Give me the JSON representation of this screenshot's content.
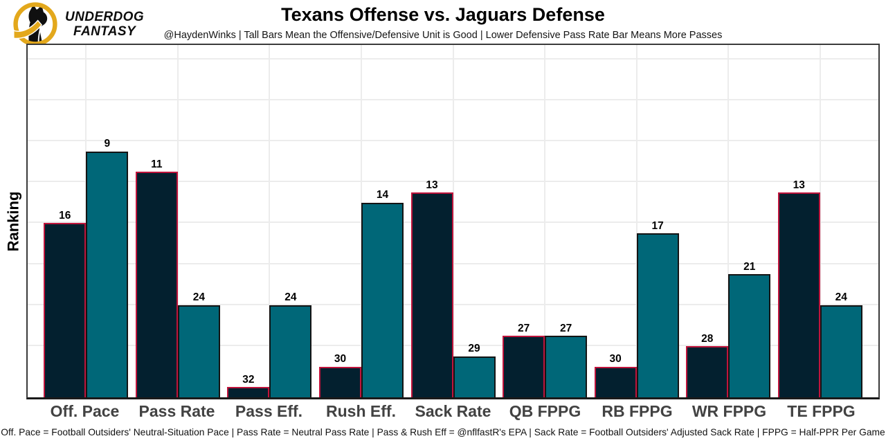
{
  "logo": {
    "line1": "UNDERDOG",
    "line2": "FANTASY"
  },
  "header": {
    "title": "Texans Offense vs. Jaguars Defense",
    "subtitle": "@HaydenWinks | Tall Bars Mean the Offensive/Defensive Unit is Good | Lower Defensive Pass Rate Bar Means More Passes"
  },
  "chart_data": {
    "type": "bar",
    "title": "Texans Offense vs. Jaguars Defense",
    "ylabel": "Ranking",
    "xlabel": "",
    "categories": [
      "Off. Pace",
      "Pass Rate",
      "Pass Eff.",
      "Rush Eff.",
      "Sack Rate",
      "QB FPPG",
      "RB FPPG",
      "WR FPPG",
      "TE FPPG"
    ],
    "series": [
      {
        "name": "Texans Offense",
        "color": "#03202f",
        "border_color": "#c0143c",
        "values": [
          16,
          11,
          32,
          30,
          13,
          27,
          30,
          28,
          13
        ]
      },
      {
        "name": "Jaguars Defense",
        "color": "#006778",
        "border_color": "#141414",
        "values": [
          9,
          24,
          24,
          14,
          29,
          27,
          17,
          21,
          24
        ]
      }
    ],
    "value_encoding": "Values are NFL rankings 1-32; bar height = 33 - ranking, so lower (better) ranking draws a taller bar",
    "axis_max_units": 34.4,
    "gridline_ranks": [
      28,
      24,
      20,
      16,
      12,
      8,
      4,
      0
    ],
    "grid": "on",
    "legend": "none",
    "accent_colors": {
      "offense_fill": "#03202f",
      "offense_outline": "#c0143c",
      "defense_fill": "#006778",
      "defense_outline": "#141414",
      "logo_gold": "#e3a81c"
    }
  },
  "footer": {
    "credits": "Off. Pace = Football Outsiders' Neutral-Situation Pace | Pass Rate = Neutral Pass Rate | Pass & Rush Eff = @nflfastR's EPA | Sack Rate = Football Outsiders' Adjusted Sack Rate | FPPG = Half-PPR Per Game"
  }
}
